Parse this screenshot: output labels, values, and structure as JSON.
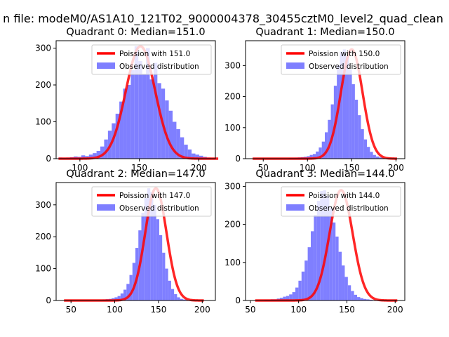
{
  "figure": {
    "suptitle": "n file: modeM0/AS1A10_121T02_9000004378_30455cztM0_level2_quad_clean"
  },
  "colors": {
    "hist": "#7f7fff",
    "poisson": "#ff0000",
    "axis": "#000000",
    "legend_border": "#cccccc"
  },
  "chart_data": [
    {
      "type": "bar",
      "title": "Quadrant 0: Median=151.0",
      "xlim": [
        80,
        214
      ],
      "ylim": [
        0,
        320
      ],
      "xticks": [
        100,
        150,
        200
      ],
      "yticks": [
        0,
        100,
        200,
        300
      ],
      "median": 151.0,
      "peak": 305,
      "bin_start": 82,
      "bin_width": 3.2,
      "legend": {
        "poisson_label": "Poission with 151.0",
        "observed_label": "Observed distribution",
        "loc": "upper right"
      },
      "values": [
        3,
        2,
        3,
        4,
        6,
        5,
        9,
        7,
        11,
        15,
        21,
        33,
        52,
        76,
        96,
        122,
        155,
        190,
        200,
        240,
        305,
        265,
        230,
        300,
        215,
        260,
        205,
        190,
        158,
        130,
        100,
        80,
        58,
        38,
        25,
        14,
        11,
        8,
        5,
        3,
        1,
        1
      ]
    },
    {
      "type": "bar",
      "title": "Quadrant 1: Median=150.0",
      "xlim": [
        30,
        210
      ],
      "ylim": [
        0,
        380
      ],
      "xticks": [
        50,
        100,
        150,
        200
      ],
      "yticks": [
        0,
        100,
        200,
        300
      ],
      "median": 150.0,
      "peak": 352,
      "bin_start": 38,
      "bin_width": 3.4,
      "legend": {
        "poisson_label": "Poission with 150.0",
        "observed_label": "Observed distribution",
        "loc": "upper right"
      },
      "values": [
        1,
        0,
        1,
        0,
        0,
        1,
        0,
        1,
        1,
        0,
        1,
        1,
        2,
        2,
        3,
        4,
        5,
        6,
        8,
        12,
        15,
        23,
        36,
        55,
        85,
        125,
        175,
        235,
        300,
        345,
        352,
        330,
        288,
        240,
        190,
        140,
        95,
        62,
        38,
        22,
        12,
        7,
        4,
        2,
        1,
        1,
        1,
        1
      ]
    },
    {
      "type": "bar",
      "title": "Quadrant 2: Median=147.0",
      "xlim": [
        33,
        215
      ],
      "ylim": [
        0,
        370
      ],
      "xticks": [
        50,
        100,
        150,
        200
      ],
      "yticks": [
        0,
        100,
        200,
        300
      ],
      "median": 147.0,
      "peak": 352,
      "bin_start": 42,
      "bin_width": 3.4,
      "legend": {
        "poisson_label": "Poission with 147.0",
        "observed_label": "Observed distribution",
        "loc": "upper right"
      },
      "values": [
        1,
        0,
        0,
        1,
        0,
        1,
        0,
        1,
        1,
        1,
        1,
        1,
        2,
        3,
        4,
        5,
        7,
        10,
        14,
        22,
        34,
        52,
        80,
        118,
        165,
        220,
        275,
        322,
        352,
        340,
        300,
        255,
        205,
        150,
        100,
        62,
        36,
        20,
        10,
        5,
        3,
        2,
        1,
        1,
        1,
        0,
        1
      ]
    },
    {
      "type": "bar",
      "title": "Quadrant 3: Median=144.0",
      "xlim": [
        45,
        210
      ],
      "ylim": [
        0,
        310
      ],
      "xticks": [
        50,
        100,
        150,
        200
      ],
      "yticks": [
        0,
        100,
        200,
        300
      ],
      "median": 144.0,
      "peak": 290,
      "bin_start": 55,
      "bin_width": 3.2,
      "legend": {
        "poisson_label": "Poission with 144.0",
        "observed_label": "Observed distribution",
        "loc": "upper right"
      },
      "values": [
        1,
        1,
        1,
        2,
        2,
        3,
        3,
        5,
        7,
        10,
        12,
        16,
        22,
        34,
        52,
        76,
        105,
        140,
        182,
        225,
        262,
        288,
        290,
        275,
        245,
        205,
        168,
        128,
        92,
        62,
        40,
        25,
        15,
        9,
        6,
        4,
        3,
        2,
        1,
        1,
        1,
        1,
        1,
        0,
        1,
        1
      ]
    }
  ]
}
